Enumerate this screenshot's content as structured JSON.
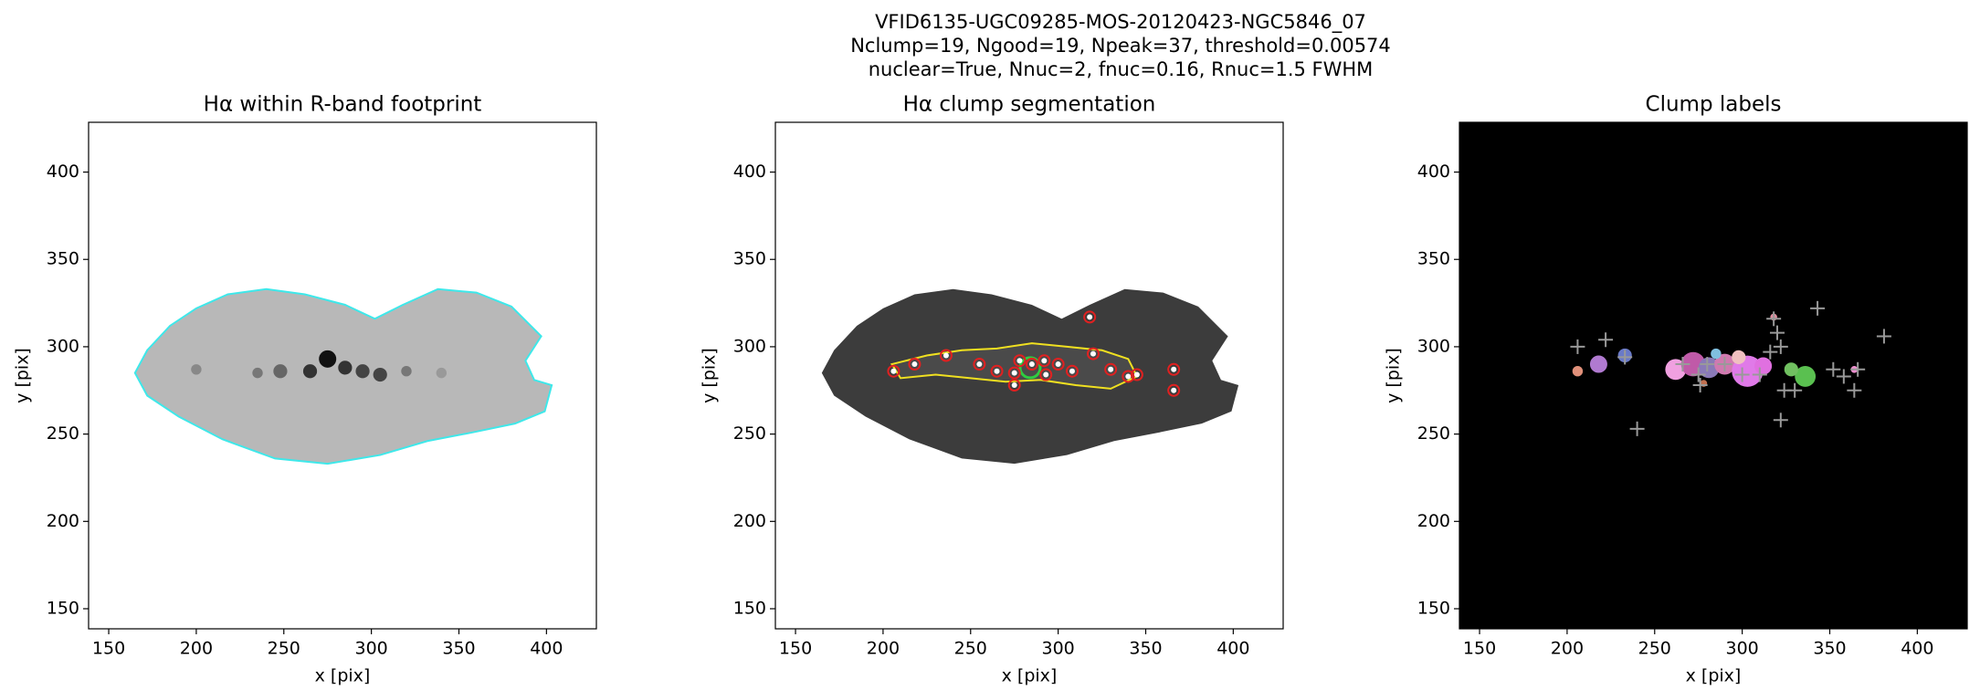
{
  "figure_title": [
    "VFID6135-UGC09285-MOS-20120423-NGC5846_07",
    "Nclump=19, Ngood=19, Npeak=37, threshold=0.00574",
    "nuclear=True, Nnuc=2, fnuc=0.16, Rnuc=1.5 FWHM"
  ],
  "chart_data": [
    {
      "type": "image",
      "title": "Hα within R-band footprint",
      "xlabel": "x [pix]",
      "ylabel": "y [pix]",
      "xlim": [
        138.5,
        428.5
      ],
      "ylim": [
        138.5,
        428.5
      ],
      "xticks": [
        150,
        200,
        250,
        300,
        350,
        400
      ],
      "yticks": [
        150,
        200,
        250,
        300,
        350,
        400
      ]
    },
    {
      "type": "image",
      "title": "Hα clump segmentation",
      "xlabel": "x [pix]",
      "ylabel": "y [pix]",
      "xlim": [
        138.5,
        428.5
      ],
      "ylim": [
        138.5,
        428.5
      ],
      "xticks": [
        150,
        200,
        250,
        300,
        350,
        400
      ],
      "yticks": [
        150,
        200,
        250,
        300,
        350,
        400
      ]
    },
    {
      "type": "image",
      "title": "Clump labels",
      "xlabel": "x [pix]",
      "ylabel": "y [pix]",
      "xlim": [
        138.5,
        428.5
      ],
      "ylim": [
        138.5,
        428.5
      ],
      "xticks": [
        150,
        200,
        250,
        300,
        350,
        400
      ],
      "yticks": [
        150,
        200,
        250,
        300,
        350,
        400
      ]
    }
  ]
}
